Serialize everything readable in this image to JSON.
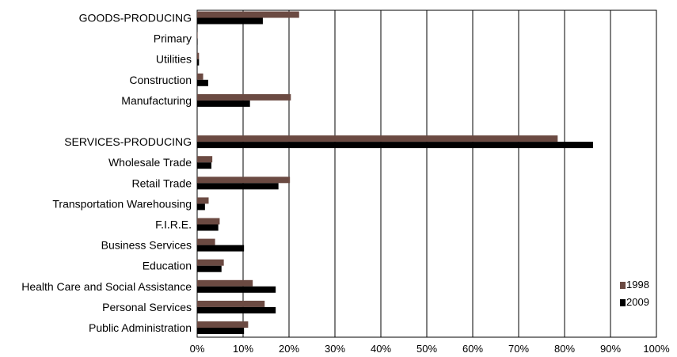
{
  "chart_data": {
    "type": "bar",
    "orientation": "horizontal",
    "categories": [
      "GOODS-PRODUCING",
      "Primary",
      "Utilities",
      "Construction",
      "Manufacturing",
      "",
      "SERVICES-PRODUCING",
      "Wholesale Trade",
      "Retail Trade",
      "Transportation Warehousing",
      "F.I.R.E.",
      "Business Services",
      "Education",
      "Health Care and Social Assistance",
      "Personal Services",
      "Public Administration"
    ],
    "series": [
      {
        "name": "1998",
        "color": "#6b4a42",
        "values": [
          22.2,
          0.1,
          0.4,
          1.3,
          20.4,
          null,
          78.5,
          3.3,
          20.2,
          2.5,
          4.9,
          3.9,
          5.8,
          12.1,
          14.7,
          11.1
        ]
      },
      {
        "name": "2009",
        "color": "#000000",
        "values": [
          14.3,
          0.1,
          0.4,
          2.4,
          11.5,
          null,
          86.2,
          3.1,
          17.7,
          1.7,
          4.6,
          10.2,
          5.3,
          17.1,
          17.1,
          10.2
        ]
      }
    ],
    "xlim": [
      0,
      100
    ],
    "xticks": [
      0,
      10,
      20,
      30,
      40,
      50,
      60,
      70,
      80,
      90,
      100
    ],
    "xtick_suffix": "%",
    "grid": "vertical",
    "legend_position": "bottom-right",
    "title": "",
    "xlabel": "",
    "ylabel": ""
  }
}
